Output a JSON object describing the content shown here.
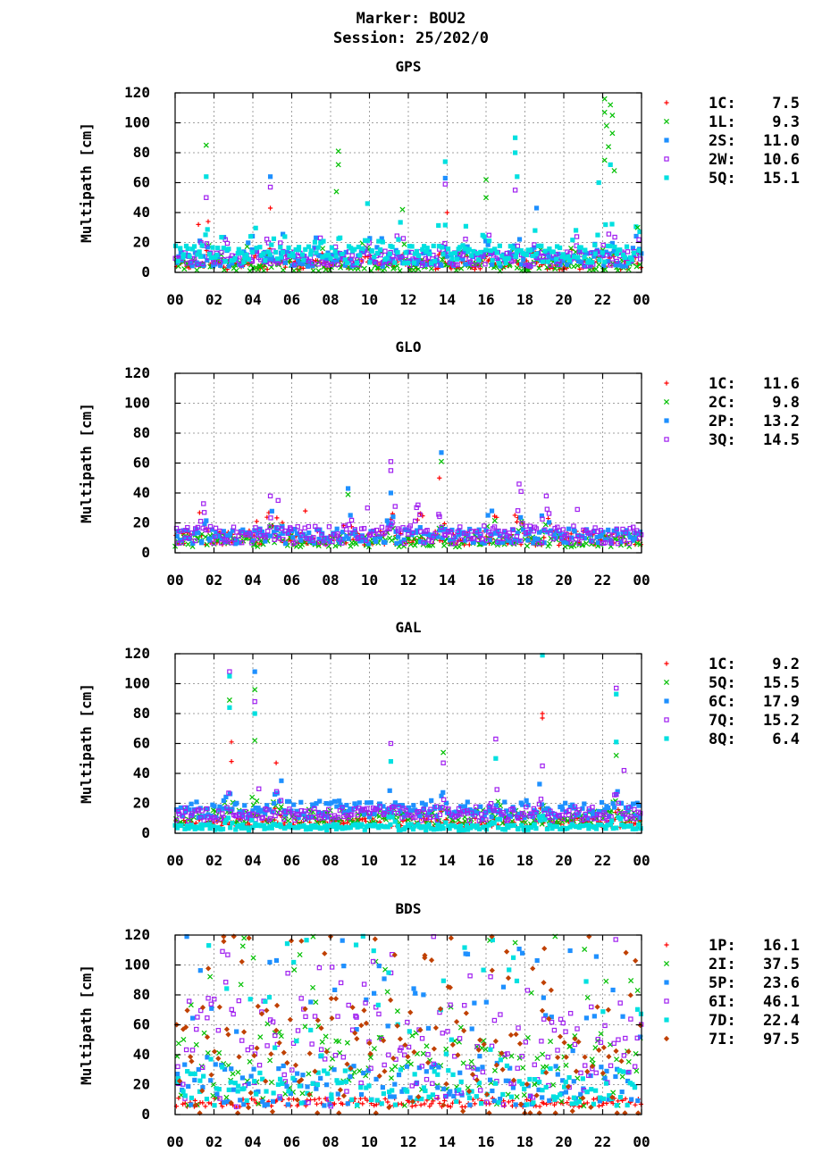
{
  "header": {
    "line1": "Marker: BOU2",
    "line2": "Session: 25/202/0"
  },
  "chart_data": [
    {
      "type": "scatter",
      "title": "GPS",
      "xlabel": "",
      "ylabel": "Multipath [cm]",
      "xlim": [
        0,
        24
      ],
      "ylim": [
        0,
        120
      ],
      "xticks": [
        "00",
        "02",
        "04",
        "06",
        "08",
        "10",
        "12",
        "14",
        "16",
        "18",
        "20",
        "22",
        "00"
      ],
      "yticks": [
        0,
        20,
        40,
        60,
        80,
        100,
        120
      ],
      "grid": true,
      "legend_position": "right",
      "series": [
        {
          "name": "1C:",
          "rms": "7.5",
          "marker": "plus",
          "color": "#ff0000",
          "base": 5,
          "spread": 3
        },
        {
          "name": "1L:",
          "rms": "9.3",
          "marker": "cross",
          "color": "#00c000",
          "base": 5,
          "spread": 4
        },
        {
          "name": "2S:",
          "rms": "11.0",
          "marker": "square",
          "color": "#1e90ff",
          "base": 9,
          "spread": 5
        },
        {
          "name": "2W:",
          "rms": "10.6",
          "marker": "open-square",
          "color": "#a020f0",
          "base": 9,
          "spread": 5
        },
        {
          "name": "5Q:",
          "rms": "15.1",
          "marker": "square",
          "color": "#00e0e0",
          "base": 12,
          "spread": 6
        }
      ],
      "spikes": [
        {
          "x": 1.2,
          "y": 32,
          "s": 0
        },
        {
          "x": 1.6,
          "y": 85,
          "s": 1
        },
        {
          "x": 1.6,
          "y": 64,
          "s": 4
        },
        {
          "x": 1.6,
          "y": 50,
          "s": 3
        },
        {
          "x": 1.7,
          "y": 34,
          "s": 0
        },
        {
          "x": 4.9,
          "y": 64,
          "s": 2
        },
        {
          "x": 4.9,
          "y": 57,
          "s": 3
        },
        {
          "x": 4.9,
          "y": 43,
          "s": 0
        },
        {
          "x": 8.4,
          "y": 81,
          "s": 1
        },
        {
          "x": 8.4,
          "y": 72,
          "s": 1
        },
        {
          "x": 8.3,
          "y": 54,
          "s": 1
        },
        {
          "x": 9.9,
          "y": 46,
          "s": 4
        },
        {
          "x": 11.7,
          "y": 42,
          "s": 1
        },
        {
          "x": 13.9,
          "y": 74,
          "s": 4
        },
        {
          "x": 13.9,
          "y": 63,
          "s": 2
        },
        {
          "x": 13.9,
          "y": 59,
          "s": 3
        },
        {
          "x": 14.0,
          "y": 40,
          "s": 0
        },
        {
          "x": 16.0,
          "y": 62,
          "s": 1
        },
        {
          "x": 16.0,
          "y": 50,
          "s": 1
        },
        {
          "x": 17.5,
          "y": 90,
          "s": 4
        },
        {
          "x": 17.5,
          "y": 80,
          "s": 4
        },
        {
          "x": 17.6,
          "y": 64,
          "s": 4
        },
        {
          "x": 17.5,
          "y": 55,
          "s": 3
        },
        {
          "x": 18.6,
          "y": 43,
          "s": 2
        },
        {
          "x": 21.8,
          "y": 60,
          "s": 4
        },
        {
          "x": 22.1,
          "y": 116,
          "s": 1
        },
        {
          "x": 22.1,
          "y": 107,
          "s": 1
        },
        {
          "x": 22.2,
          "y": 98,
          "s": 1
        },
        {
          "x": 22.4,
          "y": 112,
          "s": 1
        },
        {
          "x": 22.5,
          "y": 105,
          "s": 1
        },
        {
          "x": 22.5,
          "y": 93,
          "s": 1
        },
        {
          "x": 22.3,
          "y": 84,
          "s": 1
        },
        {
          "x": 22.1,
          "y": 75,
          "s": 1
        },
        {
          "x": 22.6,
          "y": 68,
          "s": 1
        },
        {
          "x": 22.4,
          "y": 72,
          "s": 4
        },
        {
          "x": 23.8,
          "y": 30,
          "s": 1
        }
      ],
      "bursts": [
        1.5,
        2.6,
        3.9,
        4.9,
        5.6,
        7.4,
        8.5,
        9.8,
        10.6,
        11.6,
        13.8,
        14.8,
        16.0,
        17.5,
        18.6,
        20.6,
        21.8,
        22.4,
        23.8
      ]
    },
    {
      "type": "scatter",
      "title": "GLO",
      "xlabel": "",
      "ylabel": "Multipath [cm]",
      "xlim": [
        0,
        24
      ],
      "ylim": [
        0,
        120
      ],
      "xticks": [
        "00",
        "02",
        "04",
        "06",
        "08",
        "10",
        "12",
        "14",
        "16",
        "18",
        "20",
        "22",
        "00"
      ],
      "yticks": [
        0,
        20,
        40,
        60,
        80,
        100,
        120
      ],
      "grid": true,
      "legend_position": "right",
      "series": [
        {
          "name": "1C:",
          "rms": "11.6",
          "marker": "plus",
          "color": "#ff0000",
          "base": 10,
          "spread": 5
        },
        {
          "name": "2C:",
          "rms": "9.8",
          "marker": "cross",
          "color": "#00c000",
          "base": 8,
          "spread": 4
        },
        {
          "name": "2P:",
          "rms": "13.2",
          "marker": "square",
          "color": "#1e90ff",
          "base": 11,
          "spread": 5
        },
        {
          "name": "3Q:",
          "rms": "14.5",
          "marker": "open-square",
          "color": "#a020f0",
          "base": 12,
          "spread": 6
        }
      ],
      "spikes": [
        {
          "x": 1.5,
          "y": 27,
          "s": 3
        },
        {
          "x": 4.9,
          "y": 38,
          "s": 3
        },
        {
          "x": 5.3,
          "y": 35,
          "s": 3
        },
        {
          "x": 6.7,
          "y": 28,
          "s": 0
        },
        {
          "x": 8.9,
          "y": 43,
          "s": 2
        },
        {
          "x": 8.9,
          "y": 39,
          "s": 1
        },
        {
          "x": 9.9,
          "y": 30,
          "s": 3
        },
        {
          "x": 11.1,
          "y": 61,
          "s": 3
        },
        {
          "x": 11.1,
          "y": 55,
          "s": 3
        },
        {
          "x": 11.1,
          "y": 40,
          "s": 2
        },
        {
          "x": 13.7,
          "y": 67,
          "s": 2
        },
        {
          "x": 13.7,
          "y": 61,
          "s": 1
        },
        {
          "x": 13.6,
          "y": 50,
          "s": 0
        },
        {
          "x": 16.3,
          "y": 28,
          "s": 2
        },
        {
          "x": 17.7,
          "y": 46,
          "s": 3
        },
        {
          "x": 17.8,
          "y": 41,
          "s": 3
        },
        {
          "x": 19.1,
          "y": 38,
          "s": 3
        },
        {
          "x": 20.7,
          "y": 29,
          "s": 3
        },
        {
          "x": 12.5,
          "y": 32,
          "s": 3
        },
        {
          "x": 4.2,
          "y": 21,
          "s": 0
        }
      ],
      "bursts": [
        1.5,
        4.9,
        5.3,
        8.9,
        11.1,
        12.5,
        13.7,
        16.3,
        17.7,
        19.1
      ]
    },
    {
      "type": "scatter",
      "title": "GAL",
      "xlabel": "",
      "ylabel": "Multipath [cm]",
      "xlim": [
        0,
        24
      ],
      "ylim": [
        0,
        120
      ],
      "xticks": [
        "00",
        "02",
        "04",
        "06",
        "08",
        "10",
        "12",
        "14",
        "16",
        "18",
        "20",
        "22",
        "00"
      ],
      "yticks": [
        0,
        20,
        40,
        60,
        80,
        100,
        120
      ],
      "grid": true,
      "legend_position": "right",
      "series": [
        {
          "name": "1C:",
          "rms": "9.2",
          "marker": "plus",
          "color": "#ff0000",
          "base": 7,
          "spread": 3
        },
        {
          "name": "5Q:",
          "rms": "15.5",
          "marker": "cross",
          "color": "#00c000",
          "base": 11,
          "spread": 5
        },
        {
          "name": "6C:",
          "rms": "17.9",
          "marker": "square",
          "color": "#1e90ff",
          "base": 16,
          "spread": 6
        },
        {
          "name": "7Q:",
          "rms": "15.2",
          "marker": "open-square",
          "color": "#a020f0",
          "base": 13,
          "spread": 5
        },
        {
          "name": "8Q:",
          "rms": "6.4",
          "marker": "square",
          "color": "#00e0e0",
          "base": 4,
          "spread": 2
        }
      ],
      "spikes": [
        {
          "x": 2.8,
          "y": 108,
          "s": 3
        },
        {
          "x": 2.8,
          "y": 105,
          "s": 4
        },
        {
          "x": 2.8,
          "y": 89,
          "s": 1
        },
        {
          "x": 2.8,
          "y": 84,
          "s": 4
        },
        {
          "x": 2.9,
          "y": 61,
          "s": 0
        },
        {
          "x": 2.9,
          "y": 48,
          "s": 0
        },
        {
          "x": 4.1,
          "y": 108,
          "s": 2
        },
        {
          "x": 4.1,
          "y": 96,
          "s": 1
        },
        {
          "x": 4.1,
          "y": 88,
          "s": 3
        },
        {
          "x": 4.1,
          "y": 80,
          "s": 4
        },
        {
          "x": 4.1,
          "y": 62,
          "s": 1
        },
        {
          "x": 5.2,
          "y": 47,
          "s": 0
        },
        {
          "x": 11.1,
          "y": 60,
          "s": 3
        },
        {
          "x": 11.1,
          "y": 48,
          "s": 4
        },
        {
          "x": 13.8,
          "y": 54,
          "s": 1
        },
        {
          "x": 13.8,
          "y": 47,
          "s": 3
        },
        {
          "x": 16.5,
          "y": 63,
          "s": 3
        },
        {
          "x": 16.5,
          "y": 50,
          "s": 4
        },
        {
          "x": 18.9,
          "y": 119,
          "s": 4
        },
        {
          "x": 18.9,
          "y": 80,
          "s": 0
        },
        {
          "x": 18.9,
          "y": 77,
          "s": 0
        },
        {
          "x": 18.9,
          "y": 45,
          "s": 3
        },
        {
          "x": 22.7,
          "y": 97,
          "s": 3
        },
        {
          "x": 22.7,
          "y": 93,
          "s": 4
        },
        {
          "x": 22.7,
          "y": 61,
          "s": 4
        },
        {
          "x": 22.7,
          "y": 52,
          "s": 1
        },
        {
          "x": 23.1,
          "y": 42,
          "s": 3
        }
      ],
      "bursts": [
        2.8,
        4.1,
        5.3,
        11.1,
        13.8,
        16.5,
        18.9,
        22.7
      ]
    },
    {
      "type": "scatter",
      "title": "BDS",
      "xlabel": "",
      "ylabel": "Multipath [cm]",
      "xlim": [
        0,
        24
      ],
      "ylim": [
        0,
        120
      ],
      "xticks": [
        "00",
        "02",
        "04",
        "06",
        "08",
        "10",
        "12",
        "14",
        "16",
        "18",
        "20",
        "22",
        "00"
      ],
      "yticks": [
        0,
        20,
        40,
        60,
        80,
        100,
        120
      ],
      "grid": true,
      "legend_position": "right",
      "series": [
        {
          "name": "1P:",
          "rms": "16.1",
          "marker": "plus",
          "color": "#ff0000",
          "base": 8,
          "spread": 4
        },
        {
          "name": "2I:",
          "rms": "37.5",
          "marker": "cross",
          "color": "#00c000",
          "base": 30,
          "spread": 25
        },
        {
          "name": "5P:",
          "rms": "23.6",
          "marker": "square",
          "color": "#1e90ff",
          "base": 20,
          "spread": 14
        },
        {
          "name": "6I:",
          "rms": "46.1",
          "marker": "open-square",
          "color": "#a020f0",
          "base": 40,
          "spread": 35
        },
        {
          "name": "7D:",
          "rms": "22.4",
          "marker": "square",
          "color": "#00e0e0",
          "base": 18,
          "spread": 12
        },
        {
          "name": "7I:",
          "rms": "97.5",
          "marker": "diamond",
          "color": "#c04000",
          "base": 35,
          "spread": 40
        }
      ],
      "spikes": [
        {
          "x": 0.6,
          "y": 119,
          "s": 2
        },
        {
          "x": 2.5,
          "y": 119,
          "s": 5
        },
        {
          "x": 3.8,
          "y": 118,
          "s": 5
        },
        {
          "x": 6.5,
          "y": 116,
          "s": 5
        },
        {
          "x": 7.1,
          "y": 119,
          "s": 1
        },
        {
          "x": 8.0,
          "y": 119,
          "s": 5
        },
        {
          "x": 13.3,
          "y": 119,
          "s": 3
        },
        {
          "x": 14.2,
          "y": 118,
          "s": 5
        },
        {
          "x": 16.3,
          "y": 119,
          "s": 5
        },
        {
          "x": 19.0,
          "y": 111,
          "s": 5
        },
        {
          "x": 21.3,
          "y": 119,
          "s": 5
        },
        {
          "x": 23.8,
          "y": 83,
          "s": 1
        }
      ],
      "bursts": []
    }
  ]
}
